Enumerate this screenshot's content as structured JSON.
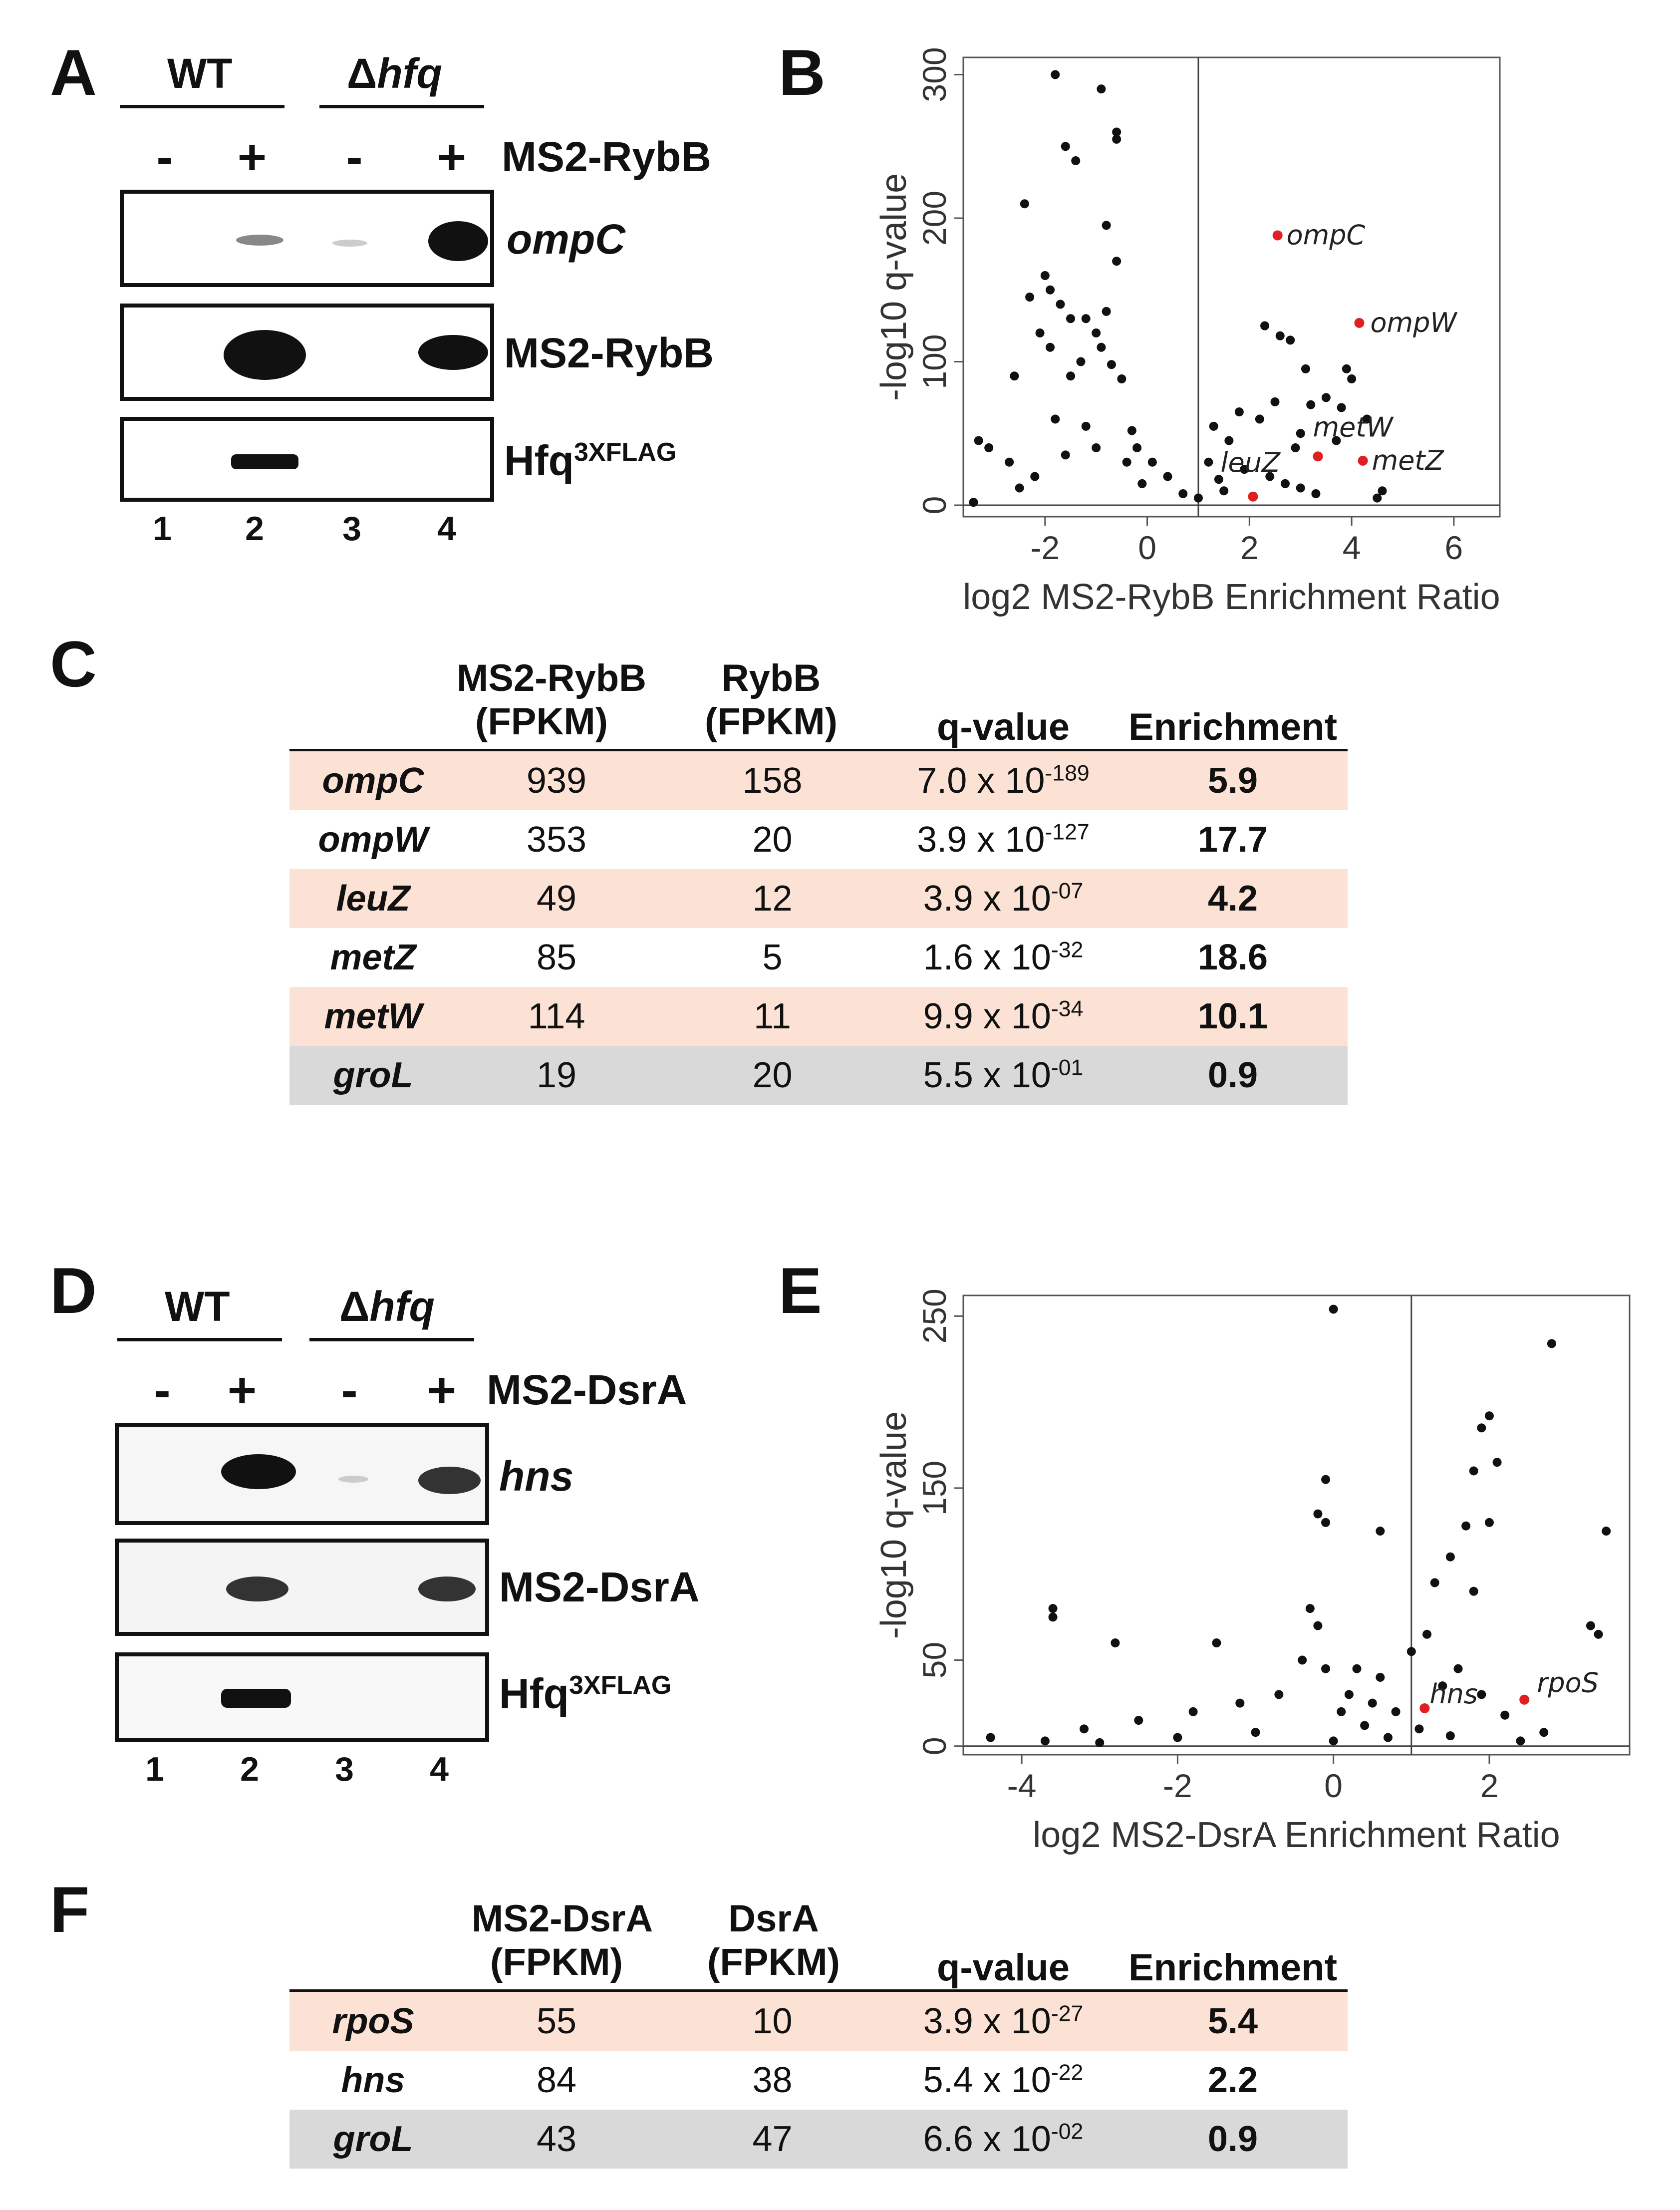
{
  "panelA": {
    "label": "A",
    "wt_label": "WT",
    "delta_symbol": "Δ",
    "mutant_label": "hfq",
    "signs": [
      "-",
      "+",
      "-",
      "+"
    ],
    "construct_label": "MS2-RybB",
    "blot_labels": {
      "target": "ompC",
      "bait": "MS2-RybB",
      "hfq_base": "Hfq",
      "hfq_sup": "3XFLAG"
    },
    "lanes": [
      "1",
      "2",
      "3",
      "4"
    ]
  },
  "panelB": {
    "label": "B",
    "chart_data": {
      "type": "scatter",
      "xlabel": "log2 MS2-RybB Enrichment Ratio",
      "ylabel": "-log10 q-value",
      "xlim": [
        -3.6,
        6.9
      ],
      "ylim": [
        -8,
        312
      ],
      "xticks": [
        "-2",
        "0",
        "2",
        "4",
        "6"
      ],
      "yticks": [
        "0",
        "100",
        "200",
        "300"
      ],
      "threshold_x": 1,
      "threshold_y": 0,
      "highlighted": [
        {
          "name": "ompC",
          "x": 2.55,
          "y": 188
        },
        {
          "name": "ompW",
          "x": 4.15,
          "y": 127
        },
        {
          "name": "leuZ",
          "x": 2.07,
          "y": 6
        },
        {
          "name": "metW",
          "x": 3.34,
          "y": 34
        },
        {
          "name": "metZ",
          "x": 4.22,
          "y": 31
        }
      ],
      "points": [
        [
          -1.8,
          300
        ],
        [
          -0.9,
          290
        ],
        [
          -0.6,
          260
        ],
        [
          -0.6,
          255
        ],
        [
          -1.6,
          250
        ],
        [
          -1.4,
          240
        ],
        [
          -2.4,
          210
        ],
        [
          -0.8,
          195
        ],
        [
          -2.0,
          160
        ],
        [
          -0.6,
          170
        ],
        [
          -1.9,
          150
        ],
        [
          -2.3,
          145
        ],
        [
          -1.7,
          140
        ],
        [
          -1.5,
          130
        ],
        [
          -1.2,
          130
        ],
        [
          -0.8,
          135
        ],
        [
          -2.1,
          120
        ],
        [
          -1.0,
          120
        ],
        [
          -1.9,
          110
        ],
        [
          -0.9,
          110
        ],
        [
          -1.3,
          100
        ],
        [
          -0.7,
          98
        ],
        [
          -2.6,
          90
        ],
        [
          -1.5,
          90
        ],
        [
          -0.5,
          88
        ],
        [
          2.3,
          125
        ],
        [
          2.6,
          118
        ],
        [
          2.8,
          115
        ],
        [
          3.1,
          95
        ],
        [
          3.9,
          95
        ],
        [
          4.0,
          88
        ],
        [
          3.5,
          75
        ],
        [
          3.2,
          70
        ],
        [
          1.8,
          65
        ],
        [
          2.5,
          72
        ],
        [
          3.8,
          68
        ],
        [
          4.3,
          60
        ],
        [
          2.2,
          60
        ],
        [
          3.0,
          50
        ],
        [
          3.7,
          45
        ],
        [
          4.6,
          10
        ],
        [
          4.5,
          5
        ],
        [
          -3.3,
          45
        ],
        [
          -3.1,
          40
        ],
        [
          -2.7,
          30
        ],
        [
          -1.8,
          60
        ],
        [
          -1.2,
          55
        ],
        [
          -0.3,
          52
        ],
        [
          -0.2,
          40
        ],
        [
          0.1,
          30
        ],
        [
          0.4,
          20
        ],
        [
          1.3,
          55
        ],
        [
          1.6,
          45
        ],
        [
          2.9,
          40
        ],
        [
          1.2,
          30
        ],
        [
          1.9,
          25
        ],
        [
          2.4,
          20
        ],
        [
          2.7,
          15
        ],
        [
          3.0,
          12
        ],
        [
          3.3,
          8
        ],
        [
          1.5,
          10
        ],
        [
          -3.4,
          2
        ],
        [
          -2.5,
          12
        ],
        [
          -2.2,
          20
        ],
        [
          -1.6,
          35
        ],
        [
          -1.0,
          40
        ],
        [
          -0.4,
          30
        ],
        [
          -0.1,
          15
        ],
        [
          0.7,
          8
        ],
        [
          1.0,
          5
        ],
        [
          1.4,
          18
        ]
      ]
    }
  },
  "panelC": {
    "label": "C",
    "columns": [
      {
        "line1": "MS2-RybB",
        "line2": "(FPKM)"
      },
      {
        "line1": "RybB",
        "line2": "(FPKM)"
      },
      {
        "line1": "",
        "line2": "q-value"
      },
      {
        "line1": "",
        "line2": "Enrichment"
      }
    ],
    "rows": [
      {
        "gene": "ompC",
        "ms2": "939",
        "fpkm": "158",
        "q_base": "7.0 x 10",
        "q_exp": "-189",
        "enrichment": "5.9"
      },
      {
        "gene": "ompW",
        "ms2": "353",
        "fpkm": "20",
        "q_base": "3.9 x 10",
        "q_exp": "-127",
        "enrichment": "17.7"
      },
      {
        "gene": "leuZ",
        "ms2": "49",
        "fpkm": "12",
        "q_base": "3.9 x 10",
        "q_exp": "-07",
        "enrichment": "4.2"
      },
      {
        "gene": "metZ",
        "ms2": "85",
        "fpkm": "5",
        "q_base": "1.6 x 10",
        "q_exp": "-32",
        "enrichment": "18.6"
      },
      {
        "gene": "metW",
        "ms2": "114",
        "fpkm": "11",
        "q_base": "9.9 x 10",
        "q_exp": "-34",
        "enrichment": "10.1"
      },
      {
        "gene": "groL",
        "ms2": "19",
        "fpkm": "20",
        "q_base": "5.5 x 10",
        "q_exp": "-01",
        "enrichment": "0.9"
      }
    ]
  },
  "panelD": {
    "label": "D",
    "wt_label": "WT",
    "delta_symbol": "Δ",
    "mutant_label": "hfq",
    "signs": [
      "-",
      "+",
      "-",
      "+"
    ],
    "construct_label": "MS2-DsrA",
    "blot_labels": {
      "target": "hns",
      "bait": "MS2-DsrA",
      "hfq_base": "Hfq",
      "hfq_sup": "3XFLAG"
    },
    "lanes": [
      "1",
      "2",
      "3",
      "4"
    ]
  },
  "panelE": {
    "label": "E",
    "chart_data": {
      "type": "scatter",
      "xlabel": "log2 MS2-DsrA Enrichment Ratio",
      "ylabel": "-log10 q-value",
      "xlim": [
        -4.75,
        3.8
      ],
      "ylim": [
        -5,
        262
      ],
      "xticks": [
        "-4",
        "-2",
        "0",
        "2"
      ],
      "yticks": [
        "0",
        "50",
        "150",
        "250"
      ],
      "threshold_x": 1,
      "threshold_y": 0,
      "highlighted": [
        {
          "name": "hns",
          "x": 1.17,
          "y": 22
        },
        {
          "name": "rpoS",
          "x": 2.45,
          "y": 27
        }
      ],
      "points": [
        [
          0.0,
          254
        ],
        [
          2.8,
          234
        ],
        [
          2.0,
          192
        ],
        [
          1.9,
          185
        ],
        [
          2.1,
          165
        ],
        [
          1.8,
          160
        ],
        [
          -0.1,
          155
        ],
        [
          -0.2,
          135
        ],
        [
          -0.1,
          130
        ],
        [
          0.6,
          125
        ],
        [
          2.0,
          130
        ],
        [
          1.7,
          128
        ],
        [
          1.5,
          110
        ],
        [
          1.3,
          95
        ],
        [
          1.8,
          90
        ],
        [
          1.2,
          65
        ],
        [
          1.0,
          55
        ],
        [
          1.6,
          45
        ],
        [
          3.5,
          125
        ],
        [
          3.3,
          70
        ],
        [
          3.4,
          65
        ],
        [
          -3.6,
          80
        ],
        [
          -3.6,
          75
        ],
        [
          -2.8,
          60
        ],
        [
          -1.5,
          60
        ],
        [
          -0.3,
          80
        ],
        [
          -0.2,
          70
        ],
        [
          0.3,
          45
        ],
        [
          0.6,
          40
        ],
        [
          0.2,
          30
        ],
        [
          0.5,
          25
        ],
        [
          0.8,
          20
        ],
        [
          1.4,
          35
        ],
        [
          1.9,
          30
        ],
        [
          2.2,
          18
        ],
        [
          2.7,
          8
        ],
        [
          -4.4,
          5
        ],
        [
          -3.7,
          3
        ],
        [
          -3.2,
          10
        ],
        [
          -2.5,
          15
        ],
        [
          -1.8,
          20
        ],
        [
          -1.2,
          25
        ],
        [
          -0.7,
          30
        ],
        [
          -0.4,
          50
        ],
        [
          -0.1,
          45
        ],
        [
          0.1,
          20
        ],
        [
          0.4,
          12
        ],
        [
          1.1,
          10
        ],
        [
          1.5,
          6
        ],
        [
          -3.0,
          2
        ],
        [
          -2.0,
          5
        ],
        [
          -1.0,
          8
        ],
        [
          0.0,
          3
        ],
        [
          0.7,
          5
        ],
        [
          2.4,
          3
        ]
      ]
    }
  },
  "panelF": {
    "label": "F",
    "columns": [
      {
        "line1": "MS2-DsrA",
        "line2": "(FPKM)"
      },
      {
        "line1": "DsrA",
        "line2": "(FPKM)"
      },
      {
        "line1": "",
        "line2": "q-value"
      },
      {
        "line1": "",
        "line2": "Enrichment"
      }
    ],
    "rows": [
      {
        "gene": "rpoS",
        "ms2": "55",
        "fpkm": "10",
        "q_base": "3.9 x 10",
        "q_exp": "-27",
        "enrichment": "5.4"
      },
      {
        "gene": "hns",
        "ms2": "84",
        "fpkm": "38",
        "q_base": "5.4 x 10",
        "q_exp": "-22",
        "enrichment": "2.2"
      },
      {
        "gene": "groL",
        "ms2": "43",
        "fpkm": "47",
        "q_base": "6.6 x 10",
        "q_exp": "-02",
        "enrichment": "0.9"
      }
    ]
  },
  "colors": {
    "row_highlight": "#fbe2d5",
    "row_control": "#d9d9d9",
    "red_point": "#e02020",
    "ink": "#111111"
  }
}
